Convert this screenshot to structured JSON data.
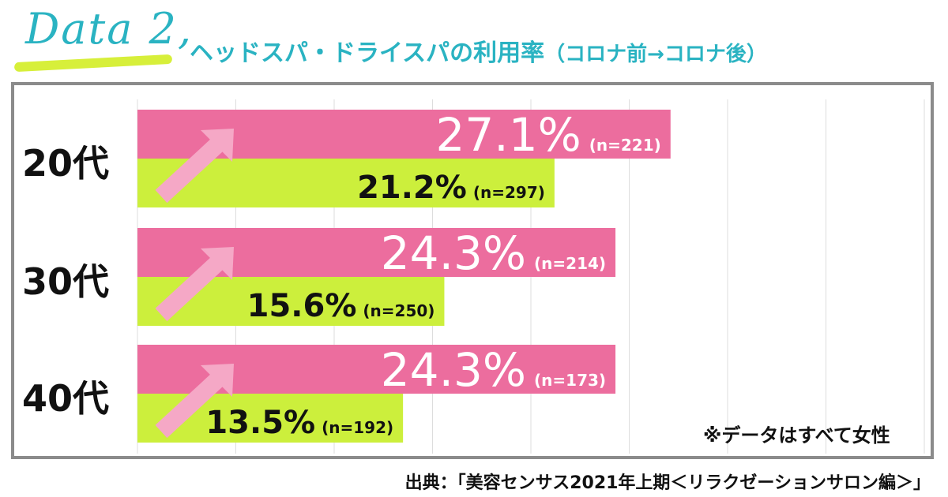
{
  "header": {
    "data_label": "Data 2,",
    "title_main": "ヘッドスパ・ドライスパの利用率",
    "title_sub": "（コロナ前→コロナ後）"
  },
  "note": "※データはすべて女性",
  "source": "出典：「美容センサス2021年上期＜リラクゼーションサロン編＞」",
  "colors": {
    "accent": "#2ab3c2",
    "post_covid": "#ec6d9e",
    "pre_covid": "#ccef3c",
    "arrow": "#f5a8c6",
    "grid": "#dddddd",
    "frame": "#8b8b8b"
  },
  "chart_data": {
    "type": "bar",
    "orientation": "horizontal",
    "categories": [
      "20代",
      "30代",
      "40代"
    ],
    "series": [
      {
        "key": "post",
        "color": "#ec6d9e",
        "values": [
          27.1,
          24.3,
          24.3
        ],
        "labels": [
          "27.1%",
          "24.3%",
          "24.3%"
        ],
        "n_labels": [
          "(n=221)",
          "(n=214)",
          "(n=173)"
        ]
      },
      {
        "key": "pre",
        "color": "#ccef3c",
        "values": [
          21.2,
          15.6,
          13.5
        ],
        "labels": [
          "21.2%",
          "15.6%",
          "13.5%"
        ],
        "n_labels": [
          "(n=297)",
          "(n=250)",
          "(n=192)"
        ]
      }
    ],
    "xlim": [
      0,
      40
    ],
    "grid_step": 5,
    "grid": true,
    "legend": "none"
  }
}
